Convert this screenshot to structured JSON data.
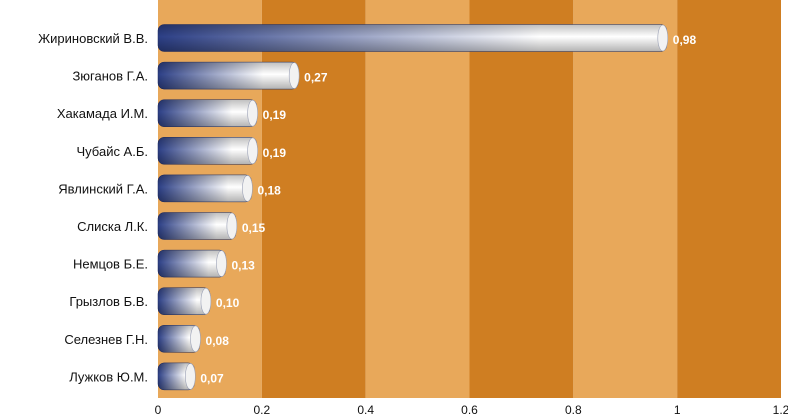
{
  "chart_data": {
    "type": "bar",
    "orientation": "horizontal",
    "categories": [
      "Жириновский В.В.",
      "Зюганов Г.А.",
      "Хакамада И.М.",
      "Чубайс А.Б.",
      "Явлинский Г.А.",
      "Слиска Л.К.",
      "Немцов Б.Е.",
      "Грызлов Б.В.",
      "Селезнев Г.Н.",
      "Лужков Ю.М."
    ],
    "values": [
      0.98,
      0.27,
      0.19,
      0.19,
      0.18,
      0.15,
      0.13,
      0.1,
      0.08,
      0.07
    ],
    "value_labels": [
      "0,98",
      "0,27",
      "0,19",
      "0,19",
      "0,18",
      "0,15",
      "0,13",
      "0,10",
      "0,08",
      "0,07"
    ],
    "xlim": [
      0,
      1.2
    ],
    "x_ticks": [
      0,
      0.2,
      0.4,
      0.6,
      0.8,
      1,
      1.2
    ],
    "x_tick_labels": [
      "0",
      "0.2",
      "0.4",
      "0.6",
      "0.8",
      "1",
      "1.2"
    ],
    "background_bands": [
      "#e8a85a",
      "#cf7e22"
    ],
    "bar_color_start": "#2c3f86",
    "bar_color_end": "#ffffff",
    "title": "",
    "xlabel": "",
    "ylabel": ""
  }
}
